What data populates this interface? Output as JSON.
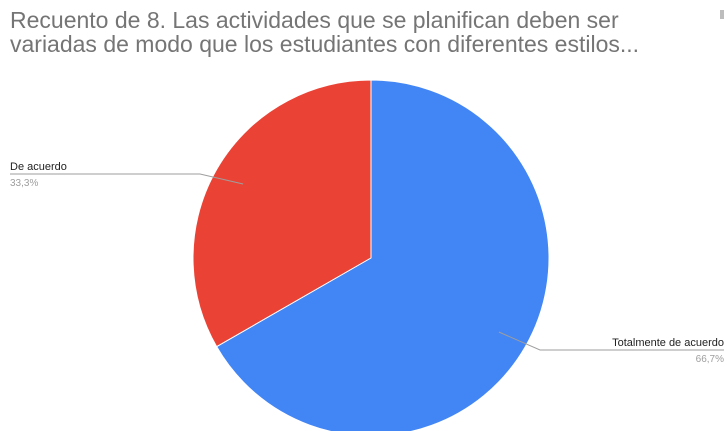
{
  "chart_data": {
    "type": "pie",
    "title_lines": [
      "Recuento de 8. Las actividades que se planifican deben ser",
      "variadas de modo que los estudiantes con diferentes estilos..."
    ],
    "slices": [
      {
        "label": "De acuerdo",
        "value": 33.3,
        "display": "33,3%",
        "color": "#ea4335"
      },
      {
        "label": "Totalmente de acuerdo",
        "value": 66.7,
        "display": "66,7%",
        "color": "#4285f4"
      }
    ],
    "start": "12 o'clock",
    "direction": "counterclockwise",
    "legend": "none"
  }
}
